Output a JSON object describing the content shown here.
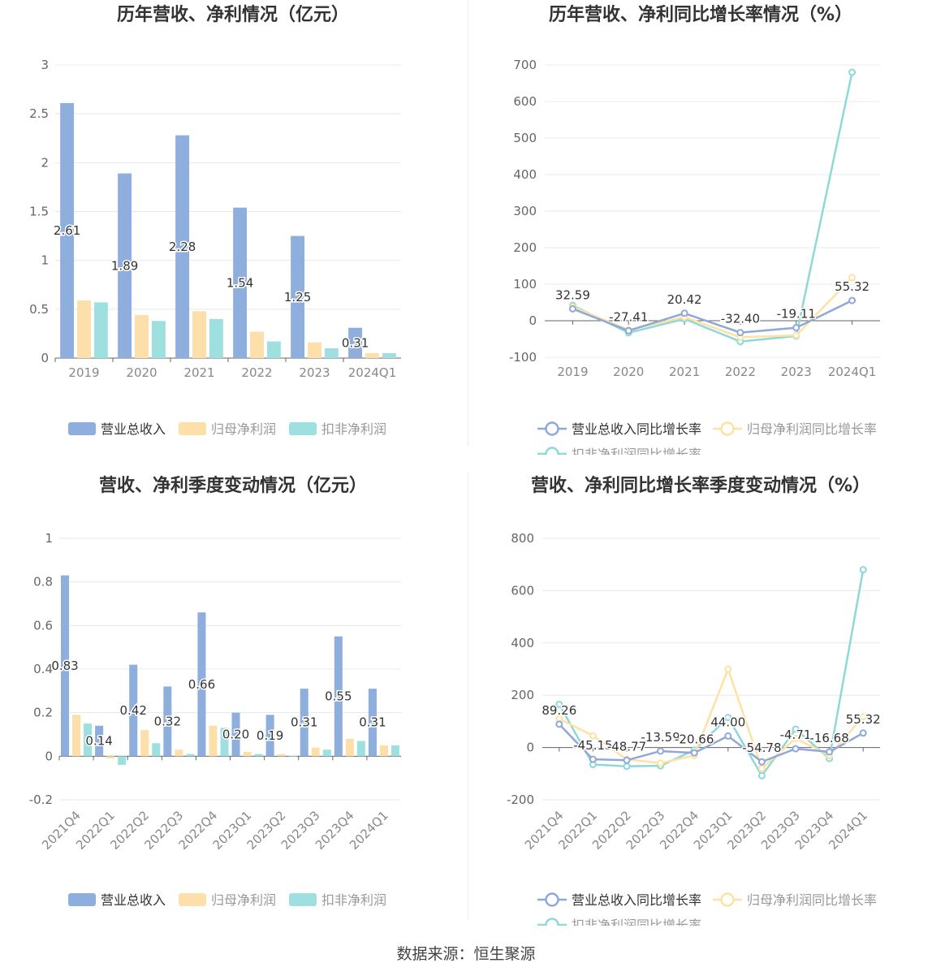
{
  "source": "数据来源：恒生聚源",
  "charts": {
    "annual_bar": {
      "title": "历年营收、净利情况（亿元）",
      "legend": [
        "营业总收入",
        "归母净利润",
        "扣非净利润"
      ],
      "colors": [
        "#8eaedd",
        "#fddfaa",
        "#9ee0e0"
      ]
    },
    "annual_line": {
      "title": "历年营收、净利同比增长率情况（%）",
      "legend": [
        "营业总收入同比增长率",
        "归母净利润同比增长率",
        "扣非净利润同比增长率"
      ],
      "colors": [
        "#8fa8d8",
        "#fde2a4",
        "#8ed8d8"
      ]
    },
    "quarter_bar": {
      "title": "营收、净利季度变动情况（亿元）",
      "legend": [
        "营业总收入",
        "归母净利润",
        "扣非净利润"
      ],
      "colors": [
        "#8eaedd",
        "#fddfaa",
        "#9ee0e0"
      ]
    },
    "quarter_line": {
      "title": "营收、净利同比增长率季度变动情况（%）",
      "legend": [
        "营业总收入同比增长率",
        "归母净利润同比增长率",
        "扣非净利润同比增长率"
      ],
      "colors": [
        "#8fa8d8",
        "#fde2a4",
        "#8ed8d8"
      ]
    }
  },
  "chart_data": [
    {
      "type": "bar",
      "title": "历年营收、净利情况（亿元）",
      "categories": [
        "2019",
        "2020",
        "2021",
        "2022",
        "2023",
        "2024Q1"
      ],
      "series": [
        {
          "name": "营业总收入",
          "values": [
            2.61,
            1.89,
            2.28,
            1.54,
            1.25,
            0.31
          ],
          "labels": [
            "2.61",
            "1.89",
            "2.28",
            "1.54",
            "1.25",
            "0.31"
          ]
        },
        {
          "name": "归母净利润",
          "values": [
            0.59,
            0.44,
            0.48,
            0.27,
            0.16,
            0.05
          ]
        },
        {
          "name": "扣非净利润",
          "values": [
            0.57,
            0.38,
            0.4,
            0.17,
            0.1,
            0.05
          ]
        }
      ],
      "ylim": [
        0,
        3
      ],
      "yticks": [
        "0",
        "0.5",
        "1",
        "1.5",
        "2",
        "2.5",
        "3"
      ],
      "legend_position": "bottom",
      "grid": true
    },
    {
      "type": "line",
      "title": "历年营收、净利同比增长率情况（%）",
      "categories": [
        "2019",
        "2020",
        "2021",
        "2022",
        "2023",
        "2024Q1"
      ],
      "series": [
        {
          "name": "营业总收入同比增长率",
          "values": [
            32.59,
            -27.41,
            20.42,
            -32.4,
            -19.11,
            55.32
          ],
          "labels": [
            "32.59",
            "-27.41",
            "20.42",
            "-32.40",
            "-19.11",
            "55.32"
          ]
        },
        {
          "name": "归母净利润同比增长率",
          "values": [
            38,
            -25,
            10,
            -45,
            -40,
            118
          ]
        },
        {
          "name": "扣非净利润同比增长率",
          "values": [
            42,
            -33,
            5,
            -57,
            -42,
            680
          ]
        }
      ],
      "ylim": [
        -100,
        700
      ],
      "yticks": [
        "-100",
        "0",
        "100",
        "200",
        "300",
        "400",
        "500",
        "600",
        "700"
      ],
      "legend_position": "bottom",
      "grid": true
    },
    {
      "type": "bar",
      "title": "营收、净利季度变动情况（亿元）",
      "categories": [
        "2021Q4",
        "2022Q1",
        "2022Q2",
        "2022Q3",
        "2022Q4",
        "2023Q1",
        "2023Q2",
        "2023Q3",
        "2023Q4",
        "2024Q1"
      ],
      "series": [
        {
          "name": "营业总收入",
          "values": [
            0.83,
            0.14,
            0.42,
            0.32,
            0.66,
            0.2,
            0.19,
            0.31,
            0.55,
            0.31
          ],
          "labels": [
            "0.83",
            "0.14",
            "0.42",
            "0.32",
            "0.66",
            "0.20",
            "0.19",
            "0.31",
            "0.55",
            "0.31"
          ]
        },
        {
          "name": "归母净利润",
          "values": [
            0.19,
            -0.01,
            0.12,
            0.03,
            0.14,
            0.02,
            0.01,
            0.04,
            0.08,
            0.05
          ]
        },
        {
          "name": "扣非净利润",
          "values": [
            0.15,
            -0.04,
            0.06,
            0.01,
            0.13,
            0.01,
            0.0,
            0.03,
            0.07,
            0.05
          ]
        }
      ],
      "ylim": [
        -0.2,
        1
      ],
      "yticks": [
        "-0.2",
        "0",
        "0.2",
        "0.4",
        "0.6",
        "0.8",
        "1"
      ],
      "legend_position": "bottom",
      "grid": true
    },
    {
      "type": "line",
      "title": "营收、净利同比增长率季度变动情况（%）",
      "categories": [
        "2021Q4",
        "2022Q1",
        "2022Q2",
        "2022Q3",
        "2022Q4",
        "2023Q1",
        "2023Q2",
        "2023Q3",
        "2023Q4",
        "2024Q1"
      ],
      "series": [
        {
          "name": "营业总收入同比增长率",
          "values": [
            89.26,
            -45.15,
            -48.77,
            -13.59,
            -20.66,
            44.0,
            -54.78,
            -4.71,
            -16.68,
            55.32
          ],
          "labels": [
            "89.26",
            "-45.15",
            "-48.77",
            "-13.59",
            "-20.66",
            "44.00",
            "-54.78",
            "-4.71",
            "-16.68",
            "55.32"
          ]
        },
        {
          "name": "归母净利润同比增长率",
          "values": [
            110,
            45,
            -45,
            -60,
            -30,
            300,
            -80,
            35,
            -30,
            118
          ]
        },
        {
          "name": "扣非净利润同比增长率",
          "values": [
            165,
            -65,
            -72,
            -70,
            -10,
            115,
            -108,
            70,
            -42,
            680
          ]
        }
      ],
      "ylim": [
        -200,
        800
      ],
      "yticks": [
        "-200",
        "0",
        "200",
        "400",
        "600",
        "800"
      ],
      "legend_position": "bottom",
      "grid": true
    }
  ]
}
